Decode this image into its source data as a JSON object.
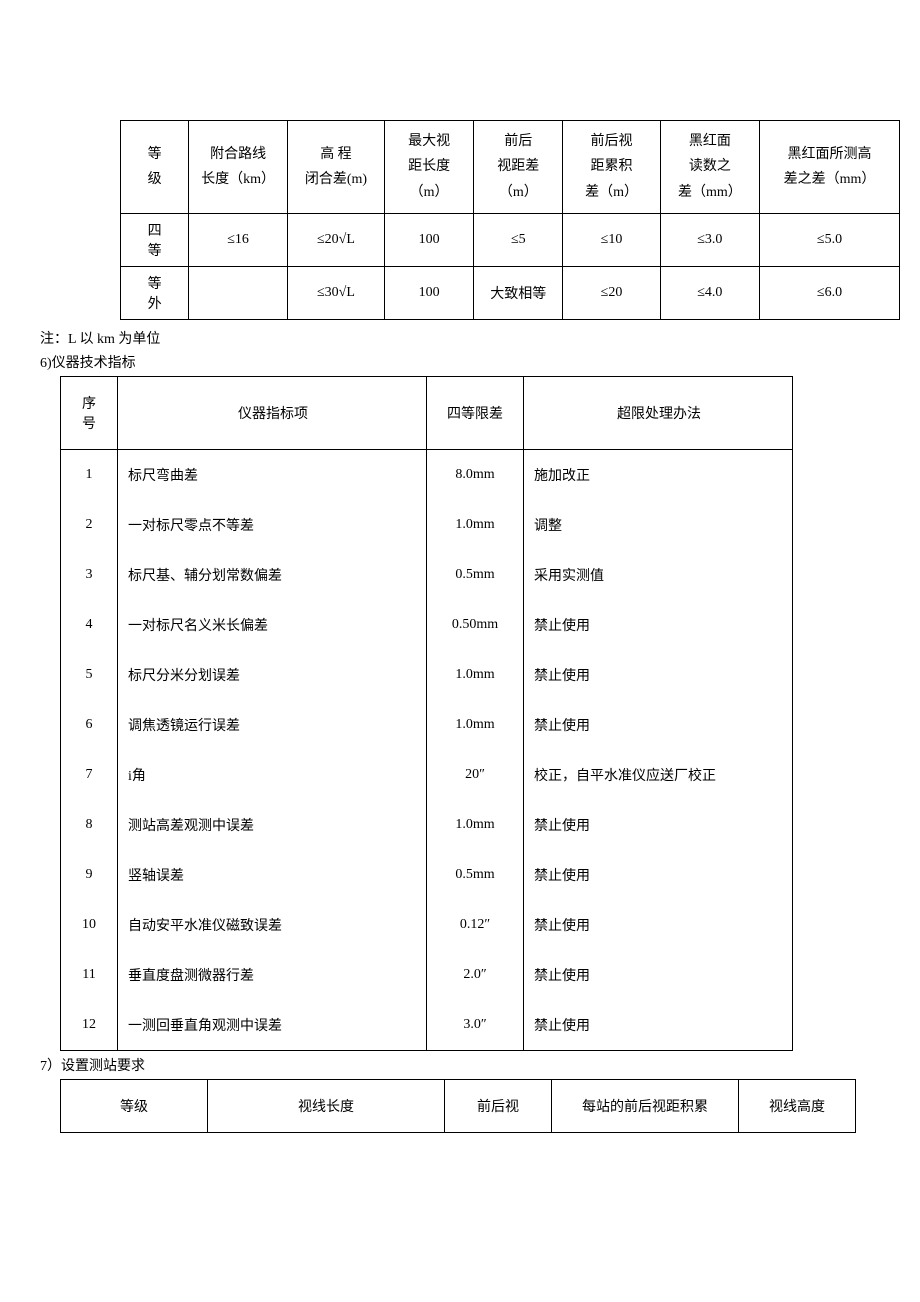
{
  "table1": {
    "headers": [
      "等\n级",
      "附合路线\n长度（km）",
      "高  程\n闭合差(m)",
      "最大视\n距长度\n（m）",
      "前后\n视距差\n（m）",
      "前后视\n距累积\n差（m）",
      "黑红面\n读数之\n差（mm）",
      "黑红面所测高\n差之差（mm）"
    ],
    "rows": [
      [
        "四\n等",
        "≤16",
        "≤20√L",
        "100",
        "≤5",
        "≤10",
        "≤3.0",
        "≤5.0"
      ],
      [
        "等\n外",
        "",
        "≤30√L",
        "100",
        "大致相等",
        "≤20",
        "≤4.0",
        "≤6.0"
      ]
    ]
  },
  "note": "注：L 以 km 为单位",
  "section6_title": "6)仪器技术指标",
  "table2": {
    "headers": [
      "序\n号",
      "仪器指标项",
      "四等限差",
      "超限处理办法"
    ],
    "rows": [
      [
        "1",
        "标尺弯曲差",
        "8.0mm",
        "施加改正"
      ],
      [
        "2",
        "一对标尺零点不等差",
        "1.0mm",
        "调整"
      ],
      [
        "3",
        "标尺基、辅分划常数偏差",
        "0.5mm",
        "采用实测值"
      ],
      [
        "4",
        "一对标尺名义米长偏差",
        "0.50mm",
        "禁止使用"
      ],
      [
        "5",
        "标尺分米分划误差",
        "1.0mm",
        "禁止使用"
      ],
      [
        "6",
        "调焦透镜运行误差",
        "1.0mm",
        "禁止使用"
      ],
      [
        "7",
        "i角",
        "20″",
        "校正，自平水准仪应送厂校正"
      ],
      [
        "8",
        "测站高差观测中误差",
        "1.0mm",
        "禁止使用"
      ],
      [
        "9",
        "竖轴误差",
        "0.5mm",
        "禁止使用"
      ],
      [
        "10",
        "自动安平水准仪磁致误差",
        "0.12″",
        "禁止使用"
      ],
      [
        "11",
        "垂直度盘测微器行差",
        "2.0″",
        "禁止使用"
      ],
      [
        "12",
        "一测回垂直角观测中误差",
        "3.0″",
        "禁止使用"
      ]
    ]
  },
  "section7_title": "7）设置测站要求",
  "table3": {
    "headers": [
      "等级",
      "视线长度",
      "前后视",
      "每站的前后视距积累",
      "视线高度"
    ]
  }
}
